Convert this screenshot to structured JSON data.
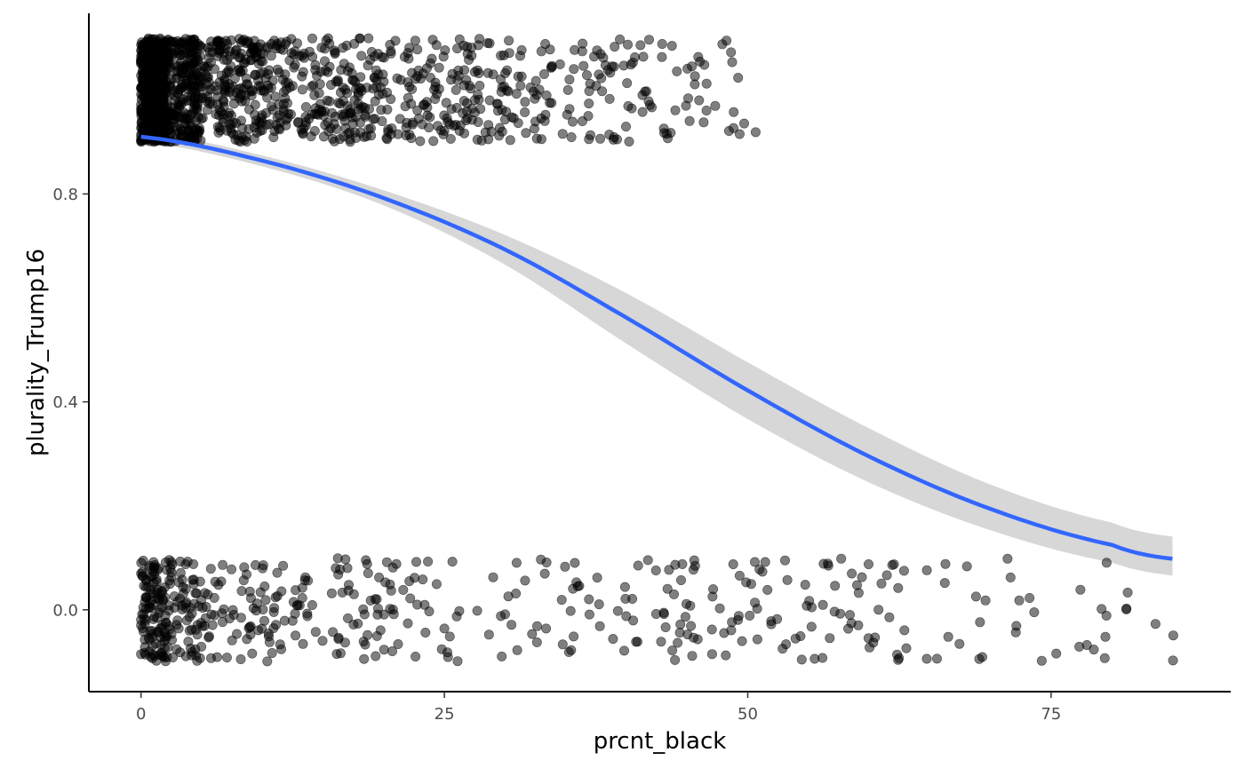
{
  "chart_data": {
    "type": "scatter",
    "title": "",
    "xlabel": "prcnt_black",
    "ylabel": "plurality_Trump16",
    "xlim": [
      -4.3,
      89.8
    ],
    "ylim": [
      -0.1575,
      1.1475
    ],
    "x_ticks": [
      0,
      25,
      50,
      75
    ],
    "x_tick_labels": [
      "0",
      "25",
      "50",
      "75"
    ],
    "y_ticks": [
      0.0,
      0.4,
      0.8
    ],
    "y_tick_labels": [
      "0.0",
      "0.4",
      "0.8"
    ],
    "grid": false,
    "legend": "none",
    "colors": {
      "points": "#000000",
      "point_alpha": 0.5,
      "smooth_line": "#3366FF",
      "confidence_band": "#d3d3d3",
      "axis": "#000000",
      "tick_label": "#4d4d4d"
    },
    "jitter": {
      "width": 0.4,
      "height": 0.1
    },
    "point_groups": [
      {
        "outcome": 1,
        "description": "counties won by Trump (jittered around y = 1)",
        "x_bins": [
          {
            "range": [
              0,
              2
            ],
            "count": 520
          },
          {
            "range": [
              2,
              5
            ],
            "count": 260
          },
          {
            "range": [
              5,
              10
            ],
            "count": 190
          },
          {
            "range": [
              10,
              20
            ],
            "count": 230
          },
          {
            "range": [
              20,
              30
            ],
            "count": 150
          },
          {
            "range": [
              30,
              40
            ],
            "count": 90
          },
          {
            "range": [
              40,
              47
            ],
            "count": 40
          },
          {
            "range": [
              47,
              51.5
            ],
            "count": 12
          }
        ]
      },
      {
        "outcome": 0,
        "description": "counties not won by Trump (jittered around y = 0)",
        "x_bins": [
          {
            "range": [
              0,
              2
            ],
            "count": 110
          },
          {
            "range": [
              2,
              5
            ],
            "count": 70
          },
          {
            "range": [
              5,
              10
            ],
            "count": 55
          },
          {
            "range": [
              10,
              20
            ],
            "count": 80
          },
          {
            "range": [
              20,
              30
            ],
            "count": 40
          },
          {
            "range": [
              30,
              40
            ],
            "count": 35
          },
          {
            "range": [
              40,
              50
            ],
            "count": 50
          },
          {
            "range": [
              50,
              60
            ],
            "count": 45
          },
          {
            "range": [
              60,
              70
            ],
            "count": 30
          },
          {
            "range": [
              70,
              80
            ],
            "count": 18
          },
          {
            "range": [
              80,
              85.5
            ],
            "count": 6
          }
        ]
      }
    ],
    "series": [
      {
        "type": "logistic_fit",
        "x": [
          0,
          10,
          20,
          30,
          40,
          50,
          60,
          70,
          80,
          85
        ],
        "y": [
          0.91,
          0.864,
          0.792,
          0.693,
          0.562,
          0.422,
          0.295,
          0.194,
          0.125,
          0.098
        ],
        "lower": [
          0.9,
          0.853,
          0.778,
          0.664,
          0.512,
          0.367,
          0.245,
          0.153,
          0.091,
          0.066
        ],
        "upper": [
          0.92,
          0.874,
          0.807,
          0.721,
          0.609,
          0.476,
          0.349,
          0.241,
          0.168,
          0.141
        ]
      }
    ]
  }
}
